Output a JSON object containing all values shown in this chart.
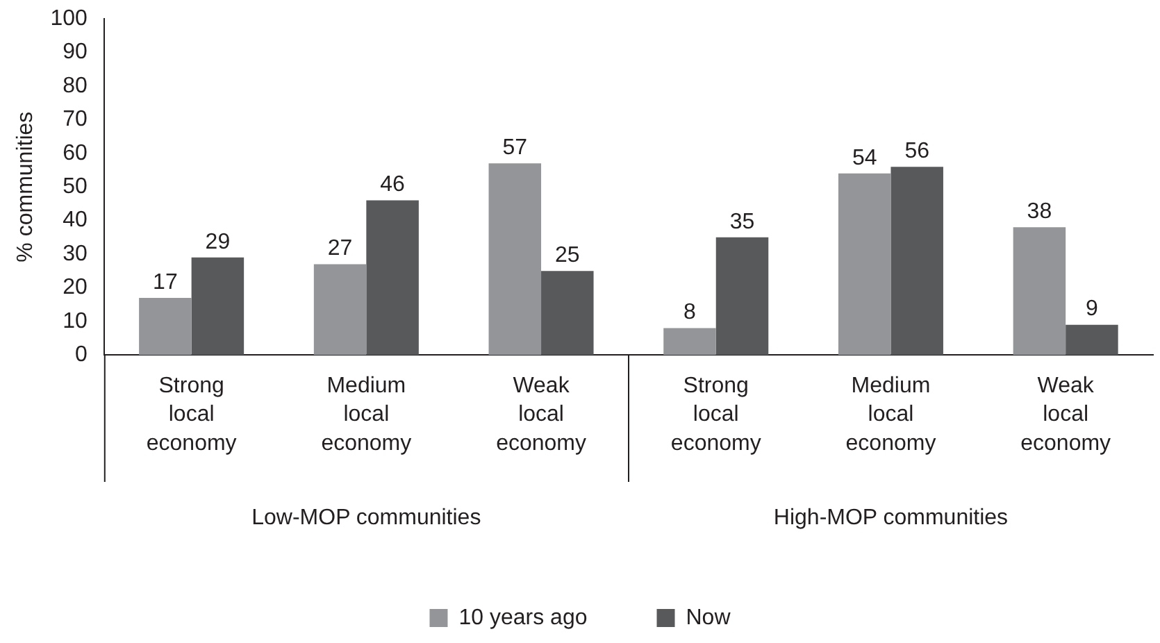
{
  "chart_data": {
    "type": "bar",
    "ylabel": "% communities",
    "categories": [
      "Strong local economy",
      "Medium local economy",
      "Weak local economy",
      "Strong local economy",
      "Medium local economy",
      "Weak local economy"
    ],
    "series": [
      {
        "name": "10 years ago",
        "color": "#939598",
        "values": [
          17,
          27,
          57,
          8,
          54,
          38
        ]
      },
      {
        "name": "Now",
        "color": "#58595b",
        "values": [
          29,
          46,
          25,
          35,
          56,
          9
        ]
      }
    ],
    "ylim": [
      0,
      100
    ],
    "yticks": [
      0,
      10,
      20,
      30,
      40,
      50,
      60,
      70,
      80,
      90,
      100
    ],
    "grid": false,
    "legend": "bottom",
    "data_labels": true,
    "annotations": [
      "Low-MOP communities",
      "High-MOP communities"
    ]
  }
}
